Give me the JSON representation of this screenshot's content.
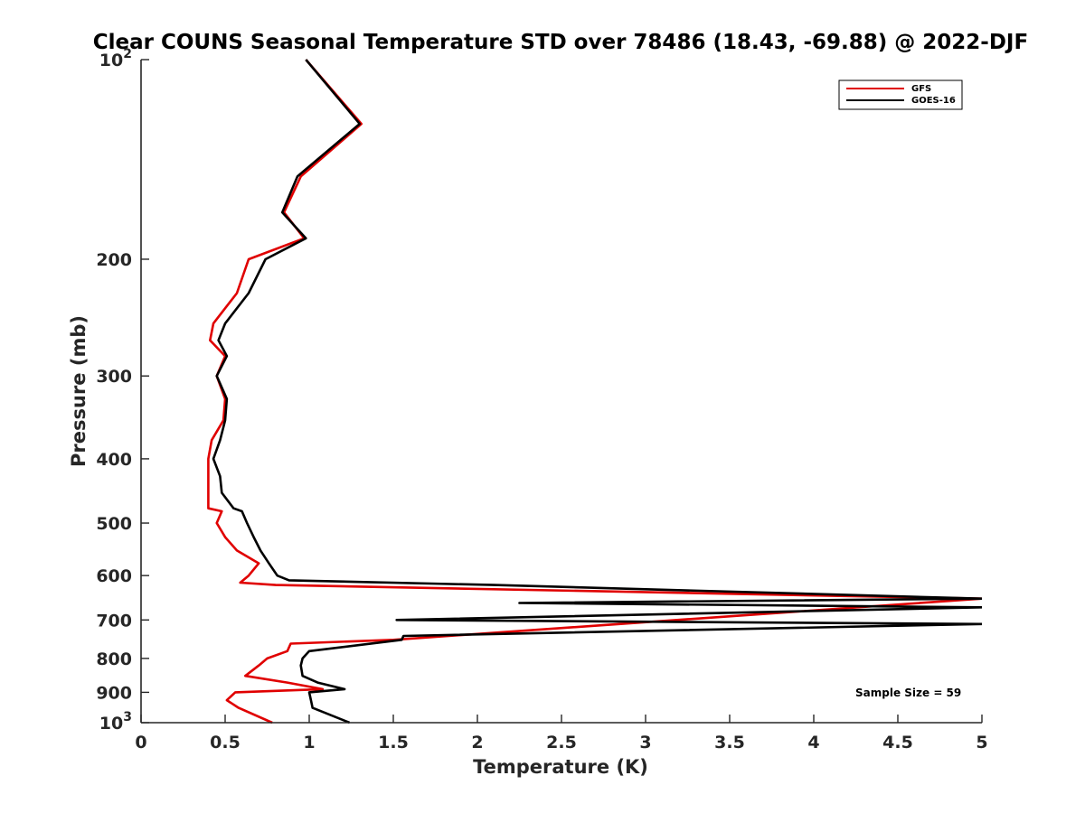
{
  "chart_data": {
    "type": "line",
    "title": "Clear COUNS Seasonal Temperature STD over 78486 (18.43, -69.88) @ 2022-DJF",
    "xlabel": "Temperature (K)",
    "ylabel": "Pressure (mb)",
    "xlim": [
      0,
      5
    ],
    "ylim": [
      100,
      1000
    ],
    "yscale": "log",
    "y_reversed": true,
    "xticks": [
      0,
      0.5,
      1,
      1.5,
      2,
      2.5,
      3,
      3.5,
      4,
      4.5,
      5
    ],
    "xtick_labels": [
      "0",
      "0.5",
      "1",
      "1.5",
      "2",
      "2.5",
      "3",
      "3.5",
      "4",
      "4.5",
      "5"
    ],
    "yticks": [
      100,
      200,
      300,
      400,
      500,
      600,
      700,
      800,
      900,
      1000
    ],
    "ytick_labels": [
      {
        "base": "10",
        "exp": "2"
      },
      {
        "base": "200",
        "exp": ""
      },
      {
        "base": "300",
        "exp": ""
      },
      {
        "base": "400",
        "exp": ""
      },
      {
        "base": "500",
        "exp": ""
      },
      {
        "base": "600",
        "exp": ""
      },
      {
        "base": "700",
        "exp": ""
      },
      {
        "base": "800",
        "exp": ""
      },
      {
        "base": "900",
        "exp": ""
      },
      {
        "base": "10",
        "exp": "3"
      }
    ],
    "legend_position": "top-right",
    "annotation": "Sample Size = 59",
    "series": [
      {
        "name": "GFS",
        "color": "#e00000",
        "points": [
          [
            0.98,
            100
          ],
          [
            1.31,
            125
          ],
          [
            0.95,
            150
          ],
          [
            0.85,
            170
          ],
          [
            0.97,
            186
          ],
          [
            0.64,
            200
          ],
          [
            0.57,
            225
          ],
          [
            0.43,
            250
          ],
          [
            0.41,
            265
          ],
          [
            0.5,
            280
          ],
          [
            0.45,
            300
          ],
          [
            0.5,
            325
          ],
          [
            0.49,
            350
          ],
          [
            0.42,
            375
          ],
          [
            0.4,
            400
          ],
          [
            0.4,
            425
          ],
          [
            0.4,
            450
          ],
          [
            0.4,
            475
          ],
          [
            0.48,
            480
          ],
          [
            0.45,
            500
          ],
          [
            0.5,
            525
          ],
          [
            0.57,
            550
          ],
          [
            0.7,
            575
          ],
          [
            0.64,
            600
          ],
          [
            0.59,
            615
          ],
          [
            0.8,
            620
          ],
          [
            5.0,
            650
          ],
          [
            1.5,
            750
          ],
          [
            0.89,
            760
          ],
          [
            0.87,
            780
          ],
          [
            0.75,
            800
          ],
          [
            0.7,
            820
          ],
          [
            0.62,
            850
          ],
          [
            0.87,
            870
          ],
          [
            1.08,
            890
          ],
          [
            0.56,
            900
          ],
          [
            0.51,
            925
          ],
          [
            0.58,
            950
          ],
          [
            0.78,
            1000
          ]
        ]
      },
      {
        "name": "GOES-16",
        "color": "#000000",
        "points": [
          [
            0.98,
            100
          ],
          [
            1.3,
            125
          ],
          [
            0.93,
            150
          ],
          [
            0.84,
            170
          ],
          [
            0.98,
            186
          ],
          [
            0.74,
            200
          ],
          [
            0.64,
            225
          ],
          [
            0.5,
            250
          ],
          [
            0.46,
            265
          ],
          [
            0.51,
            280
          ],
          [
            0.45,
            300
          ],
          [
            0.51,
            325
          ],
          [
            0.5,
            350
          ],
          [
            0.47,
            375
          ],
          [
            0.43,
            400
          ],
          [
            0.47,
            425
          ],
          [
            0.48,
            450
          ],
          [
            0.55,
            475
          ],
          [
            0.6,
            480
          ],
          [
            0.63,
            500
          ],
          [
            0.67,
            525
          ],
          [
            0.71,
            550
          ],
          [
            0.76,
            575
          ],
          [
            0.81,
            600
          ],
          [
            0.88,
            610
          ],
          [
            2.1,
            620
          ],
          [
            5.0,
            650
          ],
          [
            2.25,
            660
          ],
          [
            5.0,
            670
          ],
          [
            1.52,
            700
          ],
          [
            5.0,
            710
          ],
          [
            1.56,
            740
          ],
          [
            1.55,
            750
          ],
          [
            1.0,
            780
          ],
          [
            0.96,
            800
          ],
          [
            0.95,
            820
          ],
          [
            0.96,
            850
          ],
          [
            1.05,
            870
          ],
          [
            1.21,
            890
          ],
          [
            1.0,
            900
          ],
          [
            1.01,
            925
          ],
          [
            1.02,
            950
          ],
          [
            1.24,
            1000
          ]
        ]
      }
    ]
  }
}
